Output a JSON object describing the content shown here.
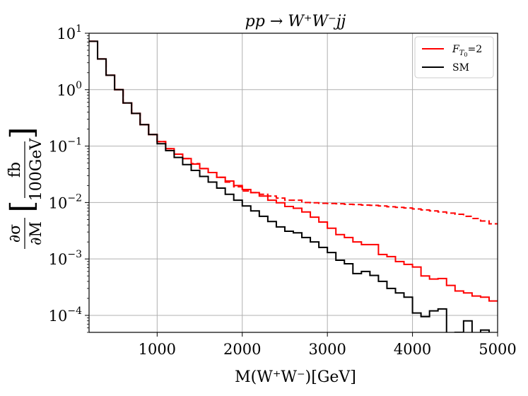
{
  "chart_data": {
    "type": "line",
    "title": "pp → W⁺W⁻jj",
    "xlabel": "M(W⁺W⁻)[GeV]",
    "ylabel": "∂σ/∂M [fb/100GeV]",
    "ylabel_parts": {
      "num": "∂σ",
      "den": "∂M",
      "unit_num": "fb",
      "unit_den": "100GeV"
    },
    "xlim": [
      200,
      5000
    ],
    "ylim": [
      5e-05,
      10
    ],
    "yscale": "log",
    "grid": true,
    "legend_position": "top-right",
    "x_ticks": [
      "1000",
      "2000",
      "3000",
      "4000",
      "5000"
    ],
    "y_ticks": [
      {
        "base": "10",
        "exp": "1"
      },
      {
        "base": "10",
        "exp": "0"
      },
      {
        "base": "10",
        "exp": "−1"
      },
      {
        "base": "10",
        "exp": "−2"
      },
      {
        "base": "10",
        "exp": "−3"
      },
      {
        "base": "10",
        "exp": "−4"
      }
    ],
    "bin_edges": [
      200,
      300,
      400,
      500,
      600,
      700,
      800,
      900,
      1000,
      1100,
      1200,
      1300,
      1400,
      1500,
      1600,
      1700,
      1800,
      1900,
      2000,
      2100,
      2200,
      2300,
      2400,
      2500,
      2600,
      2700,
      2800,
      2900,
      3000,
      3100,
      3200,
      3300,
      3400,
      3500,
      3600,
      3700,
      3800,
      3900,
      4000,
      4100,
      4200,
      4300,
      4400,
      4500,
      4600,
      4700,
      4800,
      4900,
      5000
    ],
    "series": [
      {
        "name": "SM",
        "color": "#000000",
        "style": "solid",
        "values": [
          7.2,
          3.5,
          1.8,
          1.0,
          0.58,
          0.38,
          0.24,
          0.16,
          0.11,
          0.083,
          0.063,
          0.047,
          0.037,
          0.029,
          0.023,
          0.018,
          0.014,
          0.011,
          0.0087,
          0.0071,
          0.0057,
          0.0046,
          0.0037,
          0.0031,
          0.0029,
          0.0024,
          0.002,
          0.0016,
          0.0013,
          0.00095,
          0.00082,
          0.00055,
          0.0006,
          0.00051,
          0.0004,
          0.0003,
          0.00025,
          0.00021,
          0.00011,
          9.5e-05,
          0.00012,
          0.00013,
          1e-05,
          5e-05,
          8e-05,
          1e-05,
          5.5e-05,
          1e-05
        ]
      },
      {
        "name": "F_T0=2",
        "color": "#ff0000",
        "style": "solid",
        "values": [
          7.2,
          3.5,
          1.8,
          1.0,
          0.58,
          0.38,
          0.24,
          0.16,
          0.12,
          0.09,
          0.072,
          0.06,
          0.048,
          0.04,
          0.034,
          0.028,
          0.024,
          0.02,
          0.017,
          0.015,
          0.013,
          0.011,
          0.0099,
          0.0085,
          0.0079,
          0.0068,
          0.0055,
          0.0045,
          0.0035,
          0.0027,
          0.0024,
          0.002,
          0.0018,
          0.0018,
          0.0012,
          0.0011,
          0.0009,
          0.0008,
          0.00072,
          0.0005,
          0.00044,
          0.00045,
          0.00034,
          0.00027,
          0.00025,
          0.00022,
          0.00021,
          0.00018
        ]
      },
      {
        "name": "",
        "color": "#ff0000",
        "style": "dashed",
        "values": [
          7.2,
          3.5,
          1.8,
          1.0,
          0.58,
          0.38,
          0.24,
          0.16,
          0.12,
          0.09,
          0.072,
          0.06,
          0.049,
          0.04,
          0.034,
          0.028,
          0.023,
          0.019,
          0.016,
          0.015,
          0.014,
          0.013,
          0.012,
          0.011,
          0.011,
          0.01,
          0.0099,
          0.0097,
          0.0096,
          0.0095,
          0.0093,
          0.0092,
          0.009,
          0.0089,
          0.0087,
          0.0084,
          0.0082,
          0.008,
          0.0077,
          0.0074,
          0.0071,
          0.0068,
          0.0065,
          0.0062,
          0.0057,
          0.0052,
          0.0047,
          0.0042
        ]
      }
    ],
    "legend": [
      {
        "label": "F",
        "sub": "T",
        "subsub": "0",
        "suffix": "=2",
        "color": "#ff0000"
      },
      {
        "label": "SM",
        "color": "#000000"
      }
    ]
  }
}
